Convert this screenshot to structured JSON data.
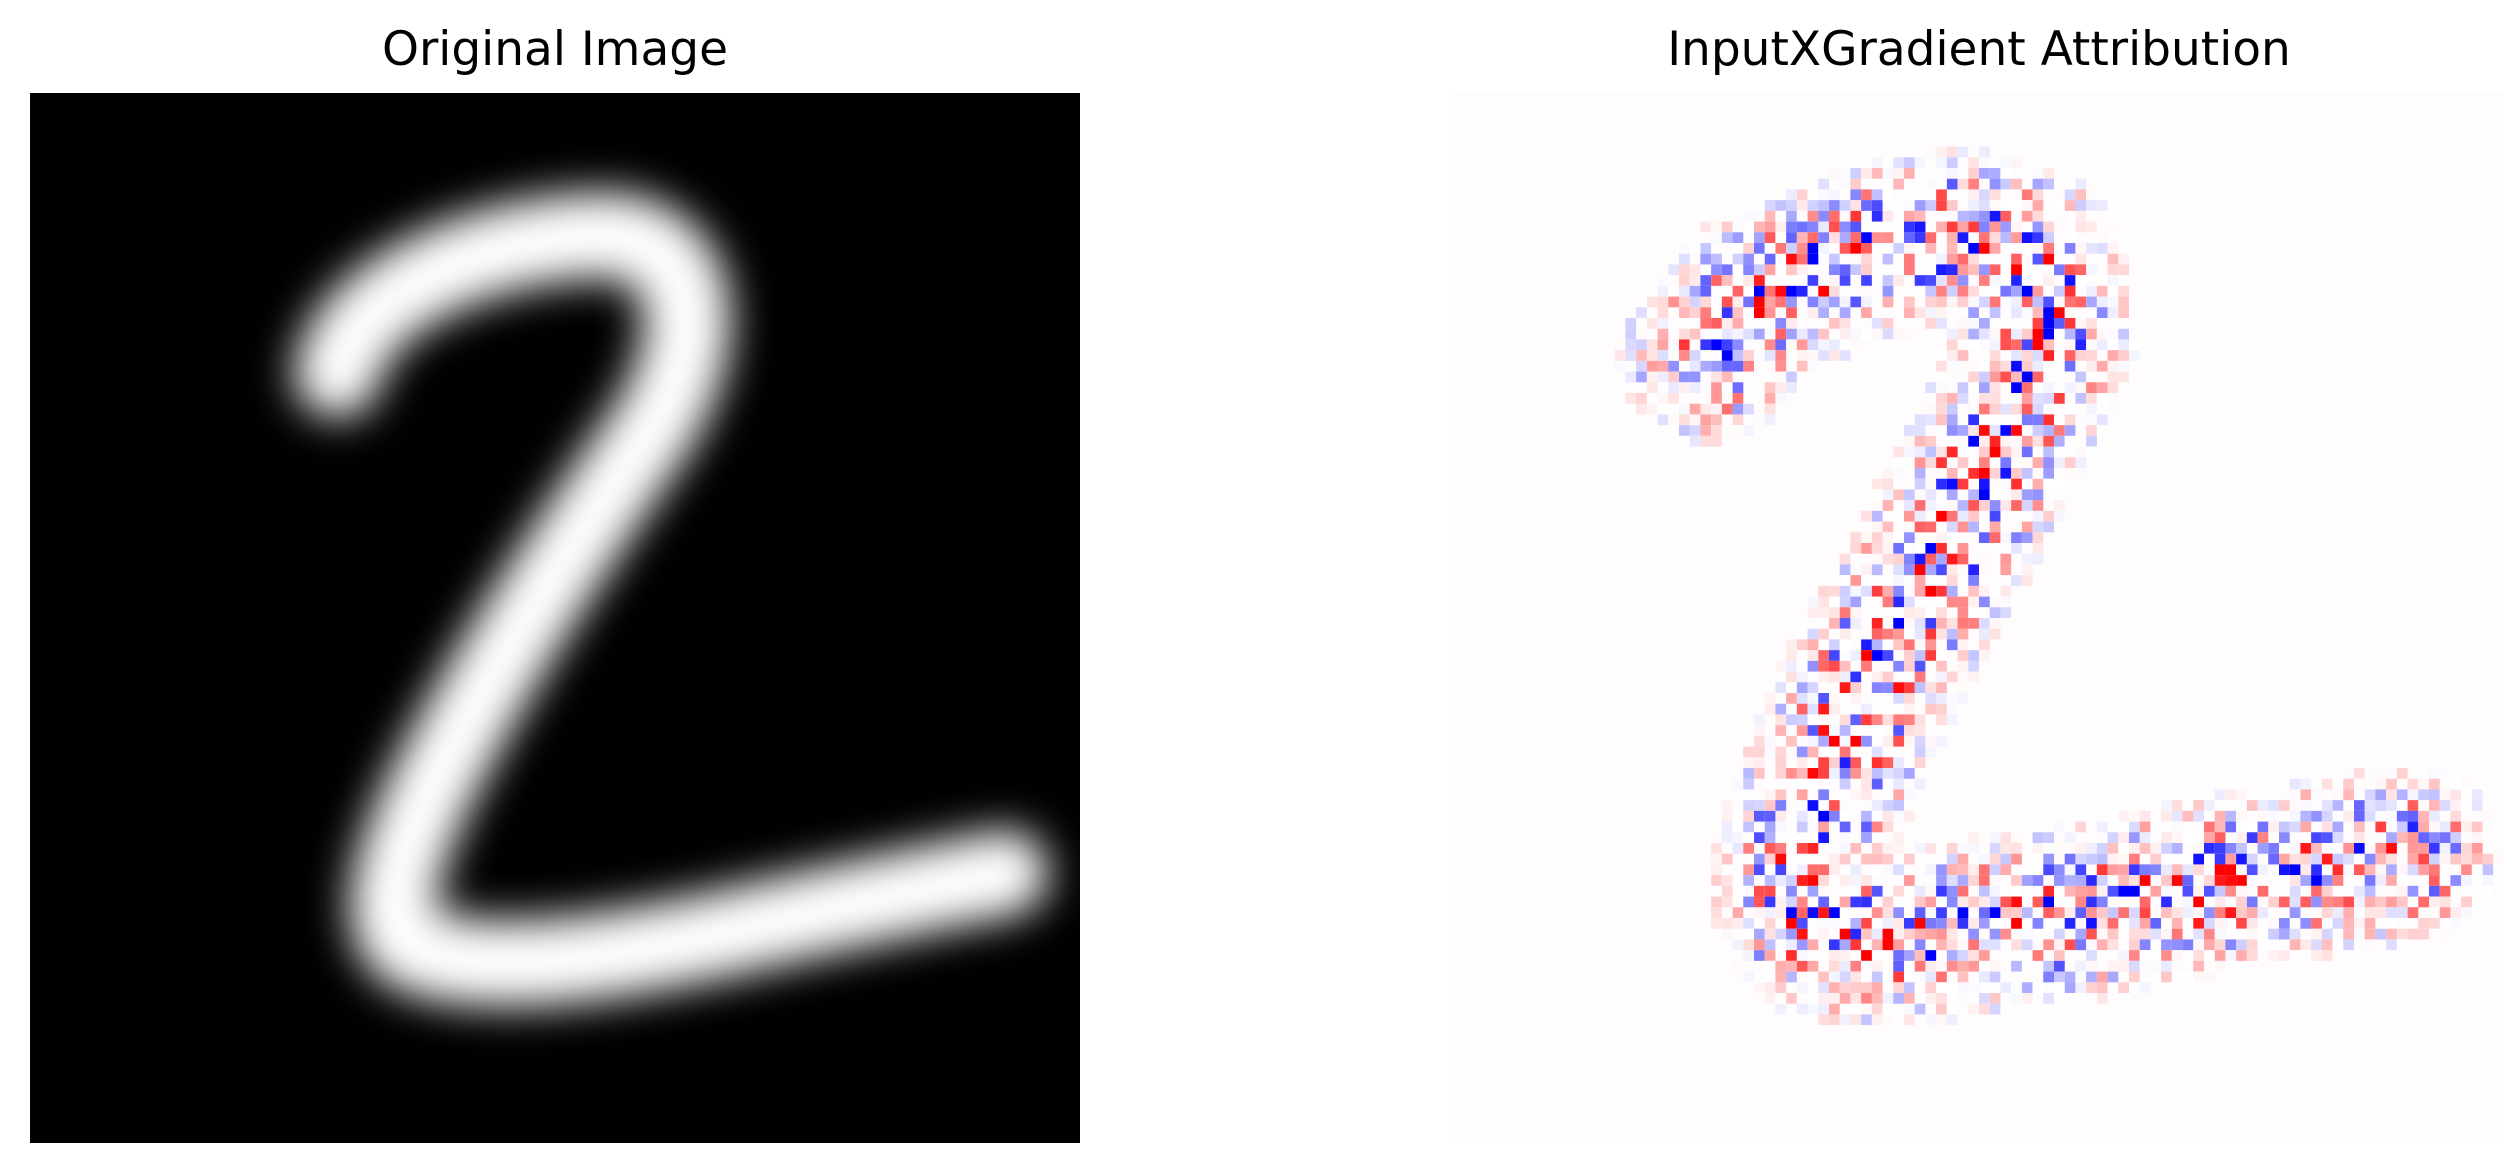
{
  "figure": {
    "panels": [
      {
        "title": "Original Image",
        "content": "grayscale-digit-image",
        "colormap": "gray",
        "background": "#000000",
        "foreground": "#ffffff"
      },
      {
        "title": "InputXGradient Attribution",
        "content": "attribution-heatmap",
        "colormap": "bwr",
        "background": "#fffcfd",
        "positive_color": "#ff0000",
        "negative_color": "#0000ff"
      }
    ]
  }
}
